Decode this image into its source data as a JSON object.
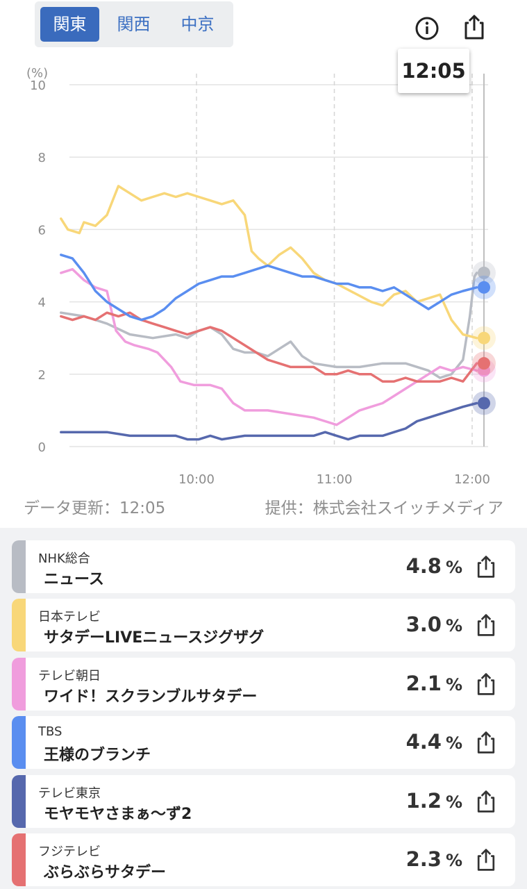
{
  "regions": [
    {
      "label": "関東",
      "active": true
    },
    {
      "label": "関西",
      "active": false
    },
    {
      "label": "中京",
      "active": false
    }
  ],
  "header": {
    "info_icon": "info-circle-icon",
    "share_icon": "share-icon"
  },
  "tooltip": {
    "time": "12:05"
  },
  "chart_data": {
    "type": "line",
    "ylabel": "(%)",
    "ylim": [
      0,
      10
    ],
    "yticks": [
      "0",
      "2",
      "4",
      "6",
      "8",
      "10"
    ],
    "xticks": [
      "10:00",
      "11:00",
      "12:00"
    ],
    "xrange_minutes": [
      0,
      181
    ],
    "grid": true,
    "series": [
      {
        "name": "NHK総合",
        "color": "#b8bcc4",
        "points": [
          [
            0,
            3.7
          ],
          [
            10,
            3.6
          ],
          [
            20,
            3.4
          ],
          [
            30,
            3.1
          ],
          [
            40,
            3.0
          ],
          [
            50,
            3.1
          ],
          [
            55,
            3.0
          ],
          [
            60,
            3.2
          ],
          [
            65,
            3.3
          ],
          [
            70,
            3.1
          ],
          [
            75,
            2.7
          ],
          [
            80,
            2.6
          ],
          [
            85,
            2.6
          ],
          [
            90,
            2.5
          ],
          [
            95,
            2.7
          ],
          [
            100,
            2.9
          ],
          [
            105,
            2.5
          ],
          [
            110,
            2.3
          ],
          [
            120,
            2.2
          ],
          [
            130,
            2.2
          ],
          [
            140,
            2.3
          ],
          [
            150,
            2.3
          ],
          [
            160,
            2.1
          ],
          [
            165,
            1.9
          ],
          [
            170,
            2.0
          ],
          [
            175,
            2.4
          ],
          [
            178,
            3.6
          ],
          [
            180,
            4.7
          ],
          [
            181,
            4.8
          ]
        ]
      },
      {
        "name": "日本テレビ",
        "color": "#f8d779",
        "points": [
          [
            0,
            6.3
          ],
          [
            3,
            6.0
          ],
          [
            8,
            5.9
          ],
          [
            10,
            6.2
          ],
          [
            15,
            6.1
          ],
          [
            20,
            6.4
          ],
          [
            25,
            7.2
          ],
          [
            30,
            7.0
          ],
          [
            35,
            6.8
          ],
          [
            40,
            6.9
          ],
          [
            45,
            7.0
          ],
          [
            50,
            6.9
          ],
          [
            55,
            7.0
          ],
          [
            60,
            6.9
          ],
          [
            65,
            6.8
          ],
          [
            70,
            6.7
          ],
          [
            75,
            6.8
          ],
          [
            80,
            6.4
          ],
          [
            83,
            5.4
          ],
          [
            86,
            5.2
          ],
          [
            90,
            5.0
          ],
          [
            95,
            5.3
          ],
          [
            100,
            5.5
          ],
          [
            105,
            5.2
          ],
          [
            110,
            4.8
          ],
          [
            115,
            4.6
          ],
          [
            120,
            4.5
          ],
          [
            135,
            4.0
          ],
          [
            140,
            3.9
          ],
          [
            145,
            4.2
          ],
          [
            150,
            4.3
          ],
          [
            155,
            4.0
          ],
          [
            160,
            4.1
          ],
          [
            165,
            4.2
          ],
          [
            170,
            3.5
          ],
          [
            175,
            3.1
          ],
          [
            181,
            3.0
          ]
        ]
      },
      {
        "name": "テレビ朝日",
        "color": "#f09ddd",
        "points": [
          [
            0,
            4.8
          ],
          [
            5,
            4.9
          ],
          [
            10,
            4.6
          ],
          [
            15,
            4.4
          ],
          [
            20,
            4.3
          ],
          [
            24,
            3.2
          ],
          [
            28,
            2.9
          ],
          [
            32,
            2.8
          ],
          [
            38,
            2.7
          ],
          [
            42,
            2.6
          ],
          [
            48,
            2.2
          ],
          [
            52,
            1.8
          ],
          [
            58,
            1.7
          ],
          [
            65,
            1.7
          ],
          [
            70,
            1.6
          ],
          [
            75,
            1.2
          ],
          [
            80,
            1.0
          ],
          [
            90,
            1.0
          ],
          [
            100,
            0.9
          ],
          [
            110,
            0.8
          ],
          [
            115,
            0.7
          ],
          [
            120,
            0.6
          ],
          [
            125,
            0.8
          ],
          [
            130,
            1.0
          ],
          [
            135,
            1.1
          ],
          [
            140,
            1.2
          ],
          [
            145,
            1.4
          ],
          [
            150,
            1.6
          ],
          [
            155,
            1.8
          ],
          [
            160,
            2.0
          ],
          [
            165,
            2.2
          ],
          [
            170,
            2.1
          ],
          [
            175,
            2.2
          ],
          [
            181,
            2.1
          ]
        ]
      },
      {
        "name": "TBS",
        "color": "#5a8ef0",
        "points": [
          [
            0,
            5.3
          ],
          [
            5,
            5.2
          ],
          [
            10,
            4.8
          ],
          [
            15,
            4.3
          ],
          [
            20,
            4.0
          ],
          [
            25,
            3.8
          ],
          [
            30,
            3.6
          ],
          [
            35,
            3.5
          ],
          [
            40,
            3.6
          ],
          [
            45,
            3.8
          ],
          [
            50,
            4.1
          ],
          [
            55,
            4.3
          ],
          [
            60,
            4.5
          ],
          [
            65,
            4.6
          ],
          [
            70,
            4.7
          ],
          [
            75,
            4.7
          ],
          [
            80,
            4.8
          ],
          [
            85,
            4.9
          ],
          [
            90,
            5.0
          ],
          [
            95,
            4.9
          ],
          [
            100,
            4.8
          ],
          [
            105,
            4.7
          ],
          [
            110,
            4.7
          ],
          [
            115,
            4.6
          ],
          [
            120,
            4.5
          ],
          [
            125,
            4.5
          ],
          [
            130,
            4.4
          ],
          [
            135,
            4.4
          ],
          [
            140,
            4.3
          ],
          [
            145,
            4.4
          ],
          [
            150,
            4.2
          ],
          [
            155,
            4.0
          ],
          [
            160,
            3.8
          ],
          [
            165,
            4.0
          ],
          [
            170,
            4.2
          ],
          [
            175,
            4.3
          ],
          [
            181,
            4.4
          ]
        ]
      },
      {
        "name": "テレビ東京",
        "color": "#5668ad",
        "points": [
          [
            0,
            0.4
          ],
          [
            10,
            0.4
          ],
          [
            20,
            0.4
          ],
          [
            30,
            0.3
          ],
          [
            40,
            0.3
          ],
          [
            50,
            0.3
          ],
          [
            55,
            0.2
          ],
          [
            60,
            0.2
          ],
          [
            65,
            0.3
          ],
          [
            70,
            0.2
          ],
          [
            80,
            0.3
          ],
          [
            90,
            0.3
          ],
          [
            100,
            0.3
          ],
          [
            110,
            0.3
          ],
          [
            115,
            0.4
          ],
          [
            120,
            0.3
          ],
          [
            125,
            0.2
          ],
          [
            130,
            0.3
          ],
          [
            140,
            0.3
          ],
          [
            145,
            0.4
          ],
          [
            150,
            0.5
          ],
          [
            155,
            0.7
          ],
          [
            160,
            0.8
          ],
          [
            165,
            0.9
          ],
          [
            170,
            1.0
          ],
          [
            175,
            1.1
          ],
          [
            181,
            1.2
          ]
        ]
      },
      {
        "name": "フジテレビ",
        "color": "#e57172",
        "points": [
          [
            0,
            3.6
          ],
          [
            5,
            3.5
          ],
          [
            10,
            3.6
          ],
          [
            15,
            3.5
          ],
          [
            20,
            3.7
          ],
          [
            25,
            3.6
          ],
          [
            30,
            3.7
          ],
          [
            35,
            3.5
          ],
          [
            40,
            3.4
          ],
          [
            45,
            3.3
          ],
          [
            50,
            3.2
          ],
          [
            55,
            3.1
          ],
          [
            60,
            3.2
          ],
          [
            65,
            3.3
          ],
          [
            70,
            3.2
          ],
          [
            75,
            3.0
          ],
          [
            80,
            2.8
          ],
          [
            85,
            2.6
          ],
          [
            90,
            2.4
          ],
          [
            95,
            2.3
          ],
          [
            100,
            2.2
          ],
          [
            105,
            2.2
          ],
          [
            110,
            2.2
          ],
          [
            115,
            2.0
          ],
          [
            120,
            2.0
          ],
          [
            125,
            2.1
          ],
          [
            130,
            2.0
          ],
          [
            135,
            2.0
          ],
          [
            140,
            1.8
          ],
          [
            145,
            1.8
          ],
          [
            150,
            1.9
          ],
          [
            155,
            1.8
          ],
          [
            160,
            1.8
          ],
          [
            165,
            1.8
          ],
          [
            170,
            1.9
          ],
          [
            175,
            1.8
          ],
          [
            181,
            2.3
          ]
        ]
      }
    ]
  },
  "footer": {
    "updated": "データ更新：12:05",
    "provider": "提供：株式会社スイッチメディア"
  },
  "channels": [
    {
      "station": "NHK総合",
      "program": "ニュース",
      "value": "4.8",
      "unit": "%",
      "color": "#b8bcc4"
    },
    {
      "station": "日本テレビ",
      "program": "サタデーLIVEニュースジグザグ",
      "value": "3.0",
      "unit": "%",
      "color": "#f8d779"
    },
    {
      "station": "テレビ朝日",
      "program": "ワイド！スクランブルサタデー",
      "value": "2.1",
      "unit": "%",
      "color": "#f09ddd"
    },
    {
      "station": "TBS",
      "program": "王様のブランチ",
      "value": "4.4",
      "unit": "%",
      "color": "#5a8ef0"
    },
    {
      "station": "テレビ東京",
      "program": "モヤモヤさまぁ〜ず2",
      "value": "1.2",
      "unit": "%",
      "color": "#5668ad"
    },
    {
      "station": "フジテレビ",
      "program": "ぶらぶらサタデー",
      "value": "2.3",
      "unit": "%",
      "color": "#e57172"
    }
  ]
}
